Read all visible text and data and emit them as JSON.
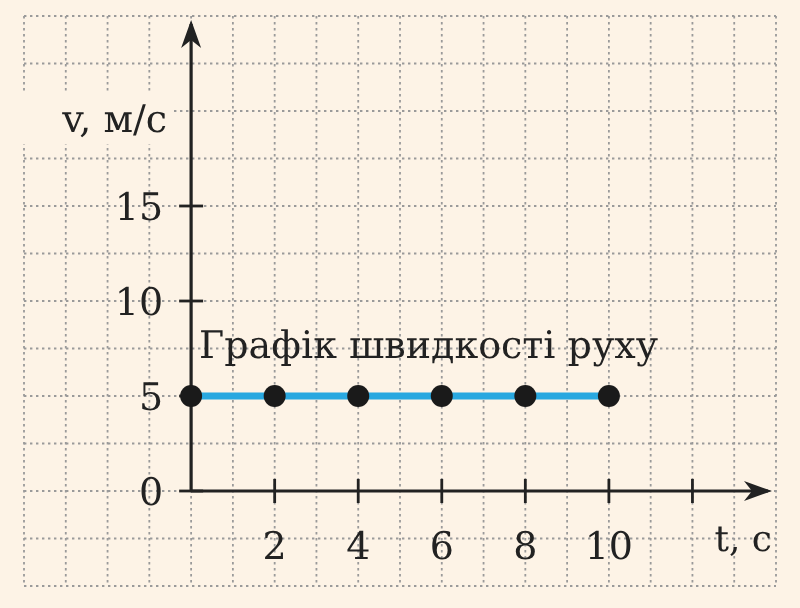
{
  "chart_data": {
    "type": "line",
    "xlabel": "t, с",
    "ylabel": "v, м/с",
    "x": [
      0,
      2,
      4,
      6,
      8,
      10
    ],
    "series": [
      {
        "color": "#29a8e0",
        "values": [
          5,
          5,
          5,
          5,
          5,
          5
        ]
      }
    ],
    "xlim": [
      -4,
      14
    ],
    "ylim": [
      -5,
      25
    ],
    "xticks": [
      2,
      4,
      6,
      8,
      10,
      {
        "value": 12,
        "label": null
      }
    ],
    "yticks": [
      0,
      5,
      10,
      15
    ],
    "grid": true,
    "marker": "circle",
    "line_style": "solid",
    "annotations": [
      "Графік швидкості руху"
    ]
  }
}
